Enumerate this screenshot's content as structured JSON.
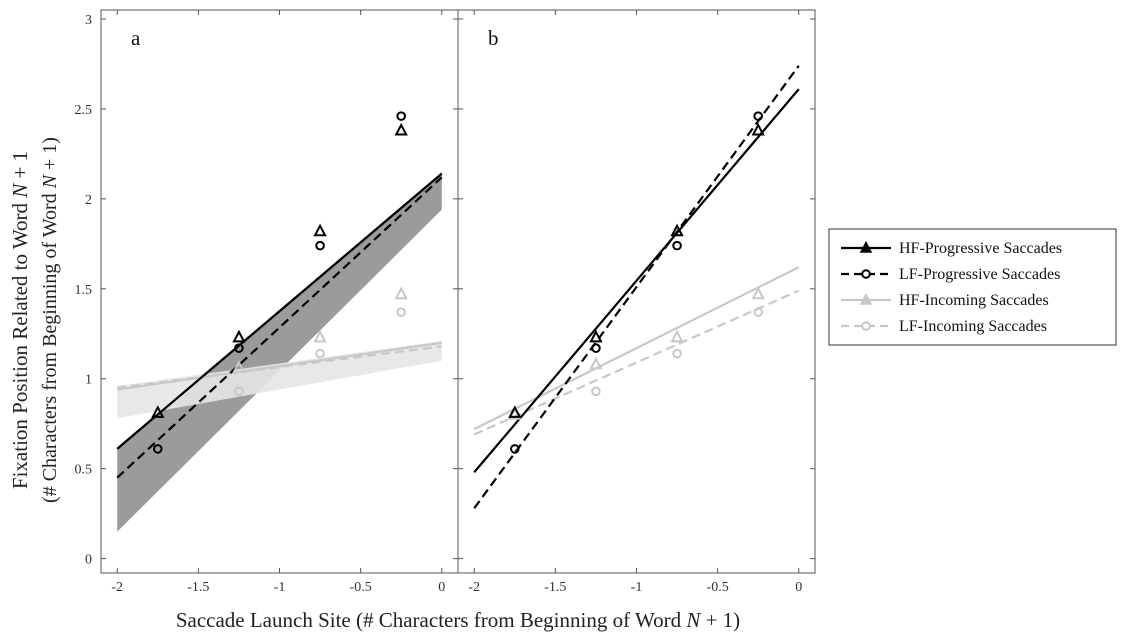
{
  "chart_data": {
    "type": "line",
    "ylabel": {
      "main": "Fixation Position Related to Word ",
      "main_italic": "N",
      "main_end": " + 1",
      "sub": "(# Characters from Beginning of Word ",
      "sub_italic": "N",
      "sub_end": " + 1)"
    },
    "xlabel": {
      "main": "Saccade Launch Site (# Characters from Beginning of Word ",
      "italic": "N",
      "end": " + 1)"
    },
    "xlim": [
      -2.1,
      0.1
    ],
    "ylim": [
      -0.08,
      3.05
    ],
    "x_ticks": [
      -2,
      -1.5,
      -1,
      -0.5,
      0
    ],
    "x_tick_labels": [
      "-2",
      "-1.5",
      "-1",
      "-0.5",
      "0"
    ],
    "y_ticks": [
      0,
      0.5,
      1,
      1.5,
      2,
      2.5,
      3
    ],
    "y_tick_labels": [
      "0",
      "0.5",
      "1",
      "1.5",
      "2",
      "2.5",
      "3"
    ],
    "legend_position": "right",
    "colors": {
      "hf_progressive": "#000000",
      "lf_progressive": "#000000",
      "hf_incoming": "#c8c8c8",
      "lf_incoming": "#c8c8c8"
    },
    "series": [
      {
        "name": "HF-Progressive Saccades",
        "key": "hf_progressive",
        "dash": "solid",
        "marker": "triangle"
      },
      {
        "name": "LF-Progressive Saccades",
        "key": "lf_progressive",
        "dash": "dashed",
        "marker": "circle"
      },
      {
        "name": "HF-Incoming Saccades",
        "key": "hf_incoming",
        "dash": "solid",
        "marker": "triangle"
      },
      {
        "name": "LF-Incoming Saccades",
        "key": "lf_incoming",
        "dash": "dashed",
        "marker": "circle"
      }
    ],
    "panels": [
      {
        "label": "a",
        "points": {
          "hf_progressive": {
            "x": [
              -1.75,
              -1.25,
              -0.75,
              -0.25
            ],
            "y": [
              0.81,
              1.23,
              1.82,
              2.38
            ]
          },
          "lf_progressive": {
            "x": [
              -1.75,
              -1.25,
              -0.75,
              -0.25
            ],
            "y": [
              0.61,
              1.17,
              1.74,
              2.46
            ]
          },
          "hf_incoming": {
            "x": [
              -1.25,
              -0.75,
              -0.25
            ],
            "y": [
              1.06,
              1.23,
              1.47
            ]
          },
          "lf_incoming": {
            "x": [
              -1.25,
              -0.75,
              -0.25
            ],
            "y": [
              0.93,
              1.14,
              1.37
            ]
          }
        },
        "lines": {
          "hf_progressive": {
            "x": [
              -2,
              0
            ],
            "y": [
              0.61,
              2.14
            ]
          },
          "lf_progressive": {
            "x": [
              -2,
              0
            ],
            "y": [
              0.45,
              2.12
            ]
          },
          "hf_incoming": {
            "x": [
              -2,
              0
            ],
            "y": [
              0.94,
              1.2
            ]
          },
          "lf_incoming": {
            "x": [
              -2,
              0
            ],
            "y": [
              0.95,
              1.18
            ]
          }
        },
        "bands": [
          {
            "key": "progressive",
            "color": "#8a8a8a",
            "opacity": 0.85,
            "x": [
              -2,
              0
            ],
            "upper": [
              0.62,
              2.15
            ],
            "lower": [
              0.15,
              1.94
            ]
          },
          {
            "key": "incoming",
            "color": "#e6e6e6",
            "opacity": 0.9,
            "x": [
              -2,
              0
            ],
            "upper": [
              0.96,
              1.21
            ],
            "lower": [
              0.78,
              1.1
            ]
          }
        ]
      },
      {
        "label": "b",
        "points": {
          "hf_progressive": {
            "x": [
              -1.75,
              -1.25,
              -0.75,
              -0.25
            ],
            "y": [
              0.81,
              1.23,
              1.82,
              2.38
            ]
          },
          "lf_progressive": {
            "x": [
              -1.75,
              -1.25,
              -0.75,
              -0.25
            ],
            "y": [
              0.61,
              1.17,
              1.74,
              2.46
            ]
          },
          "hf_incoming": {
            "x": [
              -1.75,
              -1.25,
              -0.75,
              -0.25
            ],
            "y": [
              0.8,
              1.08,
              1.23,
              1.47
            ]
          },
          "lf_incoming": {
            "x": [
              -1.25,
              -0.75,
              -0.25
            ],
            "y": [
              0.93,
              1.14,
              1.37
            ]
          }
        },
        "lines": {
          "hf_progressive": {
            "x": [
              -2,
              0
            ],
            "y": [
              0.48,
              2.61
            ]
          },
          "lf_progressive": {
            "x": [
              -2,
              0
            ],
            "y": [
              0.28,
              2.74
            ]
          },
          "hf_incoming": {
            "x": [
              -2,
              0
            ],
            "y": [
              0.72,
              1.62
            ]
          },
          "lf_incoming": {
            "x": [
              -2,
              0
            ],
            "y": [
              0.69,
              1.49
            ]
          }
        },
        "bands": []
      }
    ]
  }
}
